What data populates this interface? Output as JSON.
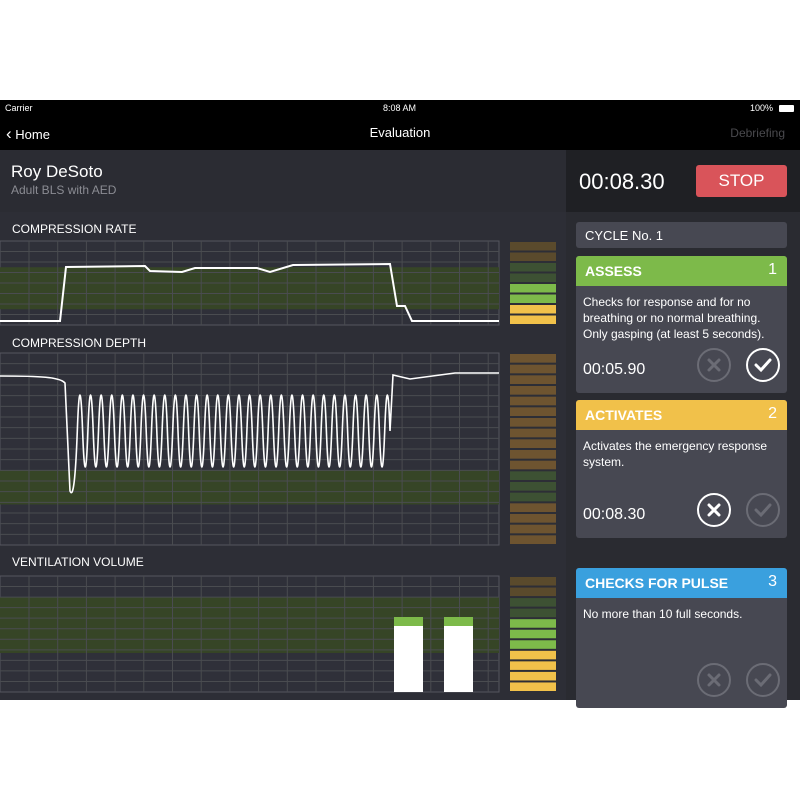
{
  "status_bar": {
    "carrier": "Carrier",
    "time": "8:08 AM",
    "battery": "100%"
  },
  "nav": {
    "back_label": "Home",
    "title": "Evaluation",
    "right_label": "Debriefing"
  },
  "patient": {
    "name": "Roy DeSoto",
    "scenario": "Adult BLS with AED"
  },
  "timer": {
    "elapsed": "00:08.30",
    "stop_label": "STOP"
  },
  "charts": {
    "rate_label": "COMPRESSION RATE",
    "depth_label": "COMPRESSION DEPTH",
    "ventilation_label": "VENTILATION VOLUME"
  },
  "colors": {
    "green": "#7dba4a",
    "yellow": "#f1c14a",
    "blue": "#3aa0de",
    "stop": "#d9545a",
    "band": "#364526"
  },
  "cycle": {
    "label": "CYCLE No. 1"
  },
  "steps": [
    {
      "title": "ASSESS",
      "number": "1",
      "color": "#7dba4a",
      "description": "Checks for response and for no breathing or no normal breathing. Only gasping (at least 5 seconds).",
      "time": "00:05.90",
      "fail_icon": "x-circle-icon",
      "pass_icon": "check-circle-icon",
      "state": "passed"
    },
    {
      "title": "ACTIVATES",
      "number": "2",
      "color": "#f1c14a",
      "description": "Activates the emergency response system.",
      "time": "00:08.30",
      "fail_icon": "x-circle-icon",
      "pass_icon": "check-circle-icon",
      "state": "failed"
    },
    {
      "title": "CHECKS FOR PULSE",
      "number": "3",
      "color": "#3aa0de",
      "description": "No more than 10 full seconds.",
      "time": "",
      "fail_icon": "x-circle-icon",
      "pass_icon": "check-circle-icon",
      "state": "pending"
    }
  ]
}
